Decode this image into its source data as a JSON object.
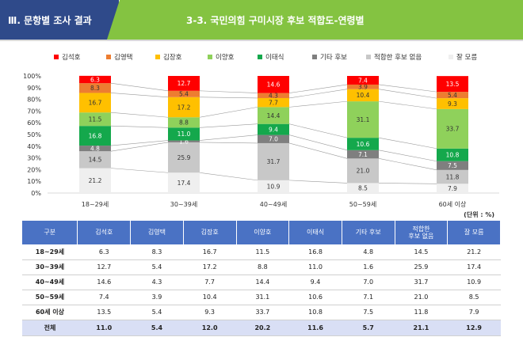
{
  "header": {
    "section": "Ⅲ. 문항별 조사 결과",
    "title": "3-3. 국민의힘 구미시장 후보 적합도-연령별"
  },
  "colors": {
    "header_left": "#2f4a8a",
    "header_right": "#84c341",
    "table_header": "#4a72c4",
    "total_row": "#d9dff5"
  },
  "chart_data": {
    "type": "bar",
    "stacked": true,
    "categories": [
      "18~29세",
      "30~39세",
      "40~49세",
      "50~59세",
      "60세 이상"
    ],
    "ylim": [
      0,
      100
    ],
    "yticks": [
      "0%",
      "10%",
      "20%",
      "30%",
      "40%",
      "50%",
      "60%",
      "70%",
      "80%",
      "90%",
      "100%"
    ],
    "grid": false,
    "legend_position": "top",
    "series": [
      {
        "name": "잘 모름",
        "color": "#efefef",
        "text_color": "#333333",
        "values": [
          21.2,
          17.4,
          10.9,
          8.5,
          7.9
        ]
      },
      {
        "name": "적합한 후보 없음",
        "color": "#c8c8c8",
        "text_color": "#333333",
        "values": [
          14.5,
          25.9,
          31.7,
          21.0,
          11.8
        ]
      },
      {
        "name": "기타 후보",
        "color": "#7f7f7f",
        "text_color": "#ffffff",
        "values": [
          4.8,
          1.6,
          7.0,
          7.1,
          7.5
        ]
      },
      {
        "name": "이태식",
        "color": "#14a84c",
        "text_color": "#ffffff",
        "values": [
          16.8,
          11.0,
          9.4,
          10.6,
          10.8
        ]
      },
      {
        "name": "이양호",
        "color": "#8fd15b",
        "text_color": "#333333",
        "values": [
          11.5,
          8.8,
          14.4,
          31.1,
          33.7
        ]
      },
      {
        "name": "김장호",
        "color": "#ffc000",
        "text_color": "#333333",
        "values": [
          16.7,
          17.2,
          7.7,
          10.4,
          9.3
        ]
      },
      {
        "name": "김영택",
        "color": "#ed7d31",
        "text_color": "#333333",
        "values": [
          8.3,
          5.4,
          4.3,
          3.9,
          5.4
        ]
      },
      {
        "name": "김석호",
        "color": "#ff0000",
        "text_color": "#ffffff",
        "values": [
          6.3,
          12.7,
          14.6,
          7.4,
          13.5
        ]
      }
    ],
    "legend_order": [
      "김석호",
      "김영택",
      "김장호",
      "이양호",
      "이태식",
      "기타 후보",
      "적합한 후보 없음",
      "잘 모름"
    ]
  },
  "unit_label": "(단위 : %)",
  "table": {
    "headers": [
      "구분",
      "김석호",
      "김영택",
      "김장호",
      "이양호",
      "이태식",
      "기타 후보",
      "적합한\n후보 없음",
      "잘 모름"
    ],
    "rows": [
      [
        "18~29세",
        "6.3",
        "8.3",
        "16.7",
        "11.5",
        "16.8",
        "4.8",
        "14.5",
        "21.2"
      ],
      [
        "30~39세",
        "12.7",
        "5.4",
        "17.2",
        "8.8",
        "11.0",
        "1.6",
        "25.9",
        "17.4"
      ],
      [
        "40~49세",
        "14.6",
        "4.3",
        "7.7",
        "14.4",
        "9.4",
        "7.0",
        "31.7",
        "10.9"
      ],
      [
        "50~59세",
        "7.4",
        "3.9",
        "10.4",
        "31.1",
        "10.6",
        "7.1",
        "21.0",
        "8.5"
      ],
      [
        "60세 이상",
        "13.5",
        "5.4",
        "9.3",
        "33.7",
        "10.8",
        "7.5",
        "11.8",
        "7.9"
      ]
    ],
    "total": [
      "전체",
      "11.0",
      "5.4",
      "12.0",
      "20.2",
      "11.6",
      "5.7",
      "21.1",
      "12.9"
    ]
  }
}
